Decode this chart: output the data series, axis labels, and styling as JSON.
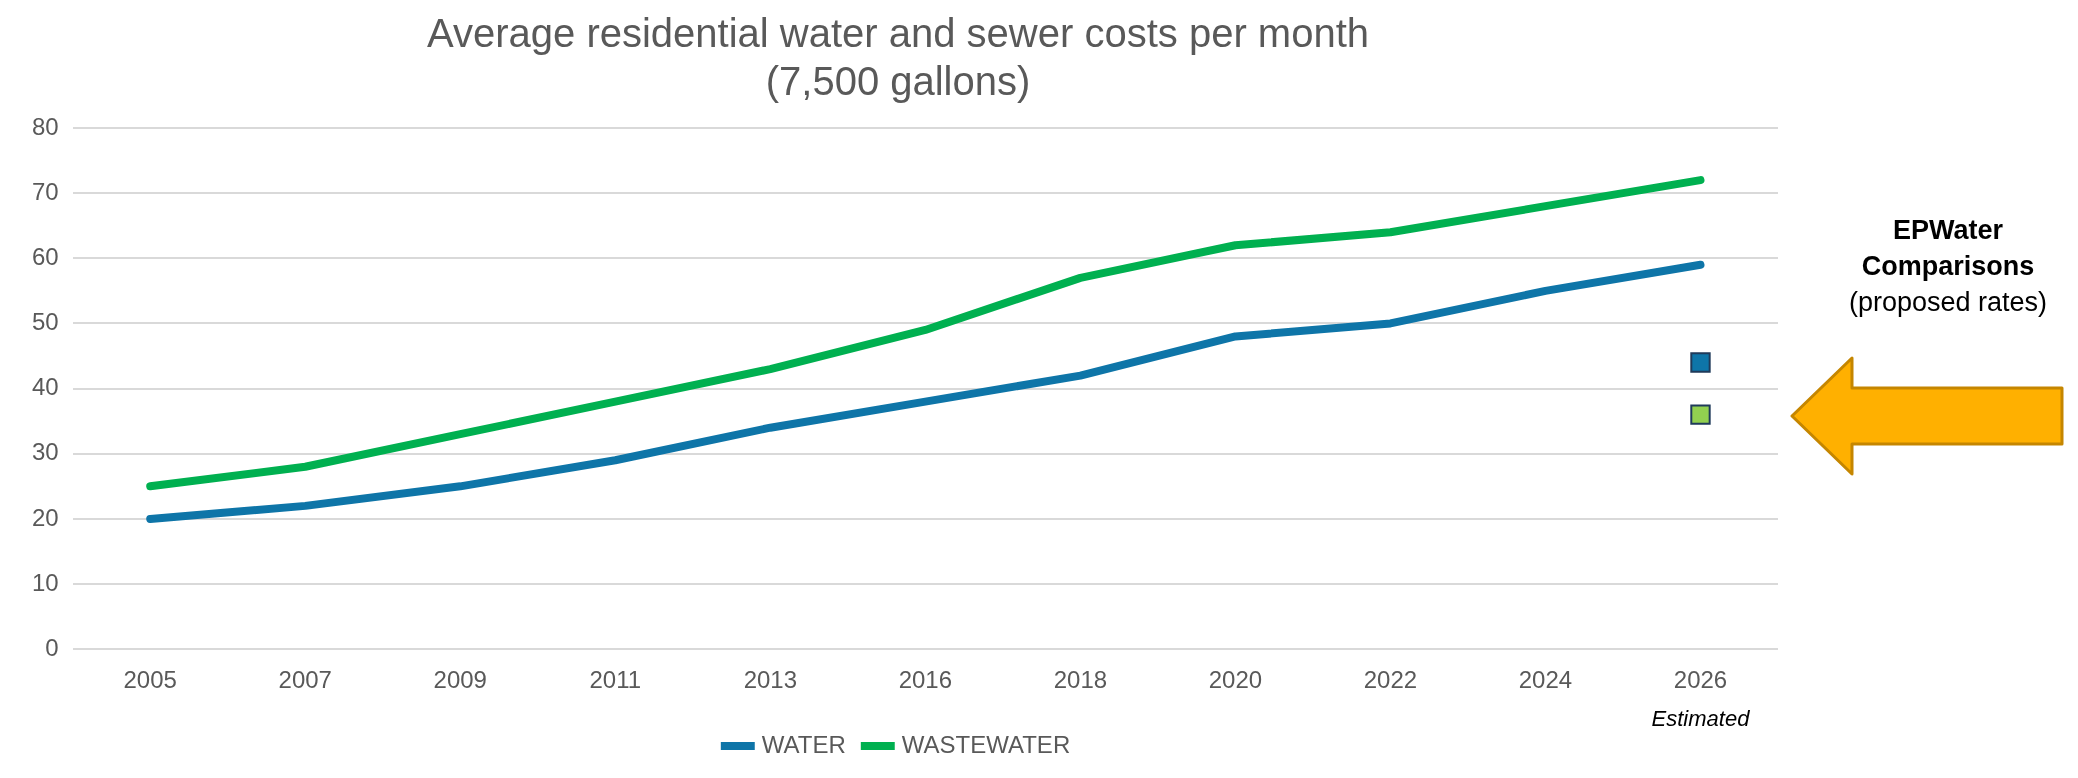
{
  "chart_data": {
    "type": "line",
    "title": [
      "Average residential water and sewer costs per month",
      "(7,500 gallons)"
    ],
    "categories": [
      "2005",
      "2007",
      "2009",
      "2011",
      "2013",
      "2016",
      "2018",
      "2020",
      "2022",
      "2024",
      "2026"
    ],
    "series": [
      {
        "name": "WATER",
        "color": "#0e75a8",
        "values": [
          20,
          22,
          25,
          29,
          34,
          38,
          42,
          48,
          50,
          55,
          59
        ]
      },
      {
        "name": "WASTEWATER",
        "color": "#00b050",
        "values": [
          25,
          28,
          33,
          38,
          43,
          49,
          57,
          62,
          64,
          68,
          72
        ]
      },
      {
        "type": "scatter",
        "color": "#0e75a8",
        "marker": "square",
        "values": [
          null,
          null,
          null,
          null,
          null,
          null,
          null,
          null,
          null,
          null,
          44
        ]
      },
      {
        "type": "scatter",
        "color": "#92d050",
        "marker": "square",
        "values": [
          null,
          null,
          null,
          null,
          null,
          null,
          null,
          null,
          null,
          null,
          36
        ]
      }
    ],
    "ylim": [
      0,
      80
    ],
    "yticks": [
      0,
      10,
      20,
      30,
      40,
      50,
      60,
      70,
      80
    ],
    "grid": "y",
    "legend": "bottom",
    "annotations": [
      "Estimated",
      "EPWater Comparisons",
      "(proposed rates)"
    ]
  }
}
